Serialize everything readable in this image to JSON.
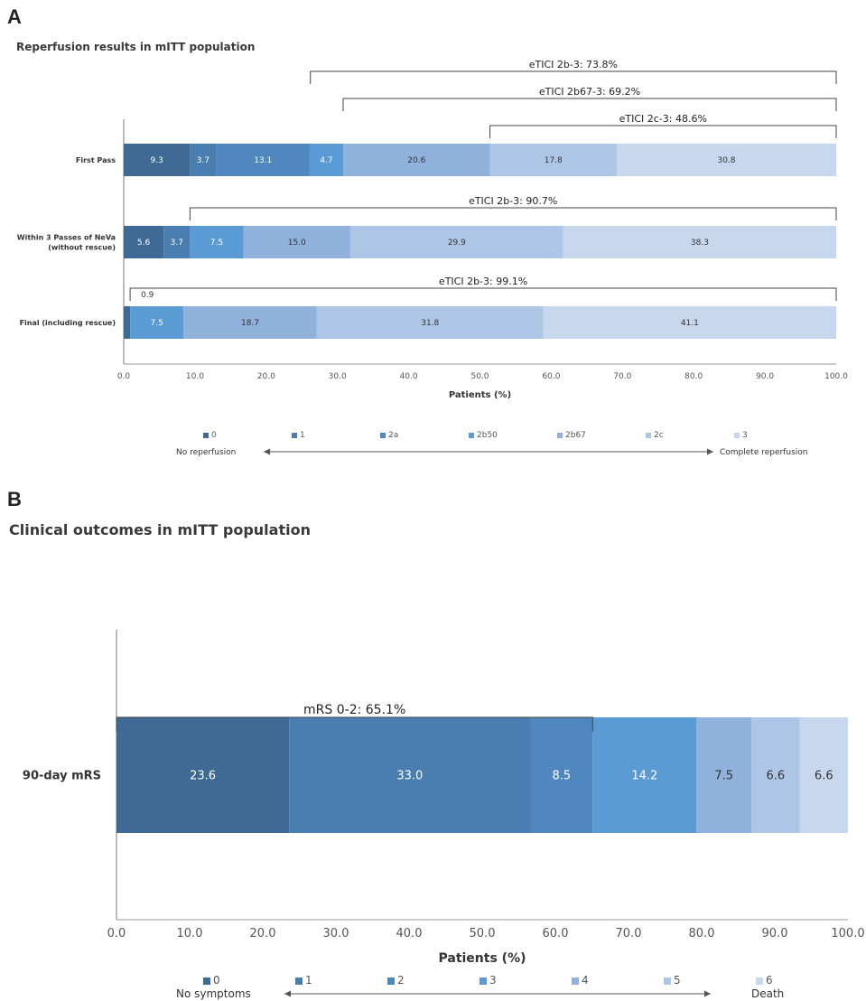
{
  "panels": {
    "a_label": "A",
    "b_label": "B",
    "a_title": "Reperfusion results in mITT population",
    "b_title": "Clinical outcomes in mITT population"
  },
  "chart_data": [
    {
      "type": "bar",
      "orientation": "horizontal",
      "stacked": true,
      "title": "Reperfusion results in mITT population",
      "xlabel": "Patients (%)",
      "xlim": [
        0,
        100
      ],
      "xticks": [
        "0.0",
        "10.0",
        "20.0",
        "30.0",
        "40.0",
        "50.0",
        "60.0",
        "70.0",
        "80.0",
        "90.0",
        "100.0"
      ],
      "grid": false,
      "categories": [
        "First Pass",
        "Within 3 Passes of NeVa\n(without rescue)",
        "Final (including rescue)"
      ],
      "series": [
        {
          "name": "0",
          "color": "#3f6a95",
          "values": [
            9.3,
            5.6,
            0.9
          ]
        },
        {
          "name": "1",
          "color": "#4a7eb0",
          "values": [
            3.7,
            3.7,
            0
          ]
        },
        {
          "name": "2a",
          "color": "#4f87be",
          "values": [
            13.1,
            0,
            0
          ]
        },
        {
          "name": "2b50",
          "color": "#5a9bd5",
          "values": [
            4.7,
            7.5,
            7.5
          ]
        },
        {
          "name": "2b67",
          "color": "#8fb1db",
          "values": [
            20.6,
            15.0,
            18.7
          ]
        },
        {
          "name": "2c",
          "color": "#aec6e6",
          "values": [
            17.8,
            29.9,
            31.8
          ]
        },
        {
          "name": "3",
          "color": "#c6d7ee",
          "values": [
            30.8,
            38.3,
            41.1
          ]
        }
      ],
      "data_labels": [
        [
          "9.3",
          "3.7",
          "13.1",
          "4.7",
          "20.6",
          "17.8",
          "30.8"
        ],
        [
          "5.6",
          "3.7",
          "",
          "7.5",
          "15.0",
          "29.9",
          "38.3"
        ],
        [
          "",
          "",
          "",
          "7.5",
          "18.7",
          "31.8",
          "41.1"
        ]
      ],
      "brackets": [
        {
          "text": "eTICI 2b-3: 73.8%",
          "from": 26.2,
          "to": 100,
          "row": 0,
          "level": 3
        },
        {
          "text": "eTICI 2b67-3: 69.2%",
          "from": 30.8,
          "to": 100,
          "row": 0,
          "level": 2
        },
        {
          "text": "eTICI 2c-3: 48.6%",
          "from": 51.4,
          "to": 100,
          "row": 0,
          "level": 1
        },
        {
          "text": "eTICI 2b-3: 90.7%",
          "from": 9.3,
          "to": 100,
          "row": 1,
          "level": 1
        },
        {
          "text": "eTICI 2b-3: 99.1%",
          "from": 0.9,
          "to": 100,
          "row": 2,
          "level": 1
        }
      ],
      "small_annotation": "0.9",
      "legend": {
        "placement": "bottom",
        "left_text": "No reperfusion",
        "right_text": "Complete reperfusion"
      }
    },
    {
      "type": "bar",
      "orientation": "horizontal",
      "stacked": true,
      "title": "Clinical outcomes in mITT population",
      "xlabel": "Patients (%)",
      "xlim": [
        0,
        100
      ],
      "xticks": [
        "0.0",
        "10.0",
        "20.0",
        "30.0",
        "40.0",
        "50.0",
        "60.0",
        "70.0",
        "80.0",
        "90.0",
        "100.0"
      ],
      "grid": false,
      "categories": [
        "90-day mRS"
      ],
      "series": [
        {
          "name": "0",
          "color": "#3f6a95",
          "values": [
            23.6
          ]
        },
        {
          "name": "1",
          "color": "#4a7eb0",
          "values": [
            33.0
          ]
        },
        {
          "name": "2",
          "color": "#4f87be",
          "values": [
            8.5
          ]
        },
        {
          "name": "3",
          "color": "#5a9bd5",
          "values": [
            14.2
          ]
        },
        {
          "name": "4",
          "color": "#8fb1db",
          "values": [
            7.5
          ]
        },
        {
          "name": "5",
          "color": "#aec6e6",
          "values": [
            6.6
          ]
        },
        {
          "name": "6",
          "color": "#c6d7ee",
          "values": [
            6.6
          ]
        }
      ],
      "data_labels": [
        [
          "23.6",
          "33.0",
          "8.5",
          "14.2",
          "7.5",
          "6.6",
          "6.6"
        ]
      ],
      "brackets": [
        {
          "text": "mRS 0-2: 65.1%",
          "from": 0,
          "to": 65.1,
          "row": 0,
          "level": 1
        }
      ],
      "legend": {
        "placement": "bottom",
        "left_text": "No symptoms",
        "right_text": "Death"
      }
    }
  ]
}
